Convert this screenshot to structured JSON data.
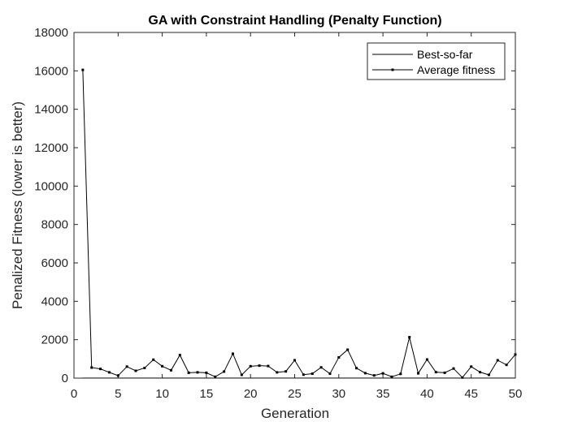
{
  "chart_data": {
    "type": "line",
    "title": "GA with Constraint Handling (Penalty Function)",
    "xlabel": "Generation",
    "ylabel": "Penalized Fitness (lower is better)",
    "xlim": [
      0,
      50
    ],
    "ylim": [
      0,
      18000
    ],
    "xticks": [
      0,
      5,
      10,
      15,
      20,
      25,
      30,
      35,
      40,
      45,
      50
    ],
    "yticks": [
      0,
      2000,
      4000,
      6000,
      8000,
      10000,
      12000,
      14000,
      16000,
      18000
    ],
    "grid": false,
    "legend_position": "top-right",
    "x": [
      1,
      2,
      3,
      4,
      5,
      6,
      7,
      8,
      9,
      10,
      11,
      12,
      13,
      14,
      15,
      16,
      17,
      18,
      19,
      20,
      21,
      22,
      23,
      24,
      25,
      26,
      27,
      28,
      29,
      30,
      31,
      32,
      33,
      34,
      35,
      36,
      37,
      38,
      39,
      40,
      41,
      42,
      43,
      44,
      45,
      46,
      47,
      48,
      49,
      50
    ],
    "series": [
      {
        "name": "Best-so-far",
        "marker": "none",
        "color": "#000000",
        "values": [
          3,
          3,
          3,
          3,
          3,
          3,
          3,
          3,
          3,
          3,
          3,
          3,
          3,
          3,
          3,
          3,
          3,
          3,
          3,
          3,
          3,
          3,
          3,
          3,
          3,
          3,
          3,
          3,
          3,
          3,
          3,
          3,
          3,
          3,
          3,
          3,
          3,
          3,
          3,
          3,
          3,
          3,
          3,
          3,
          3,
          3,
          3,
          3,
          3,
          3
        ]
      },
      {
        "name": "Average fitness",
        "marker": "square",
        "color": "#000000",
        "values": [
          16050,
          550,
          480,
          300,
          130,
          600,
          380,
          530,
          960,
          620,
          410,
          1200,
          280,
          300,
          280,
          70,
          340,
          1270,
          170,
          620,
          650,
          630,
          300,
          350,
          930,
          180,
          230,
          560,
          230,
          1080,
          1480,
          520,
          260,
          140,
          250,
          70,
          220,
          2130,
          250,
          970,
          310,
          280,
          500,
          30,
          600,
          310,
          170,
          930,
          690,
          1230
        ]
      }
    ]
  }
}
